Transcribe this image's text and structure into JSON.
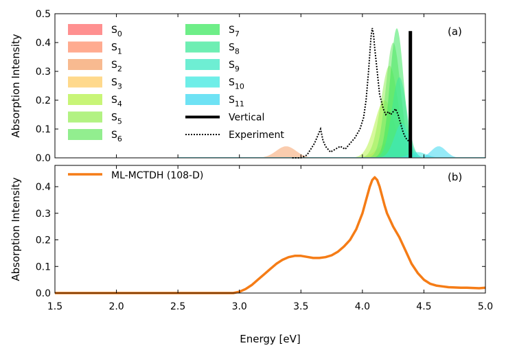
{
  "chart_data": [
    {
      "panel": "(a)",
      "type": "area",
      "ylabel": "Absorption Intensity",
      "xlim": [
        1.5,
        5.0
      ],
      "ylim": [
        0.0,
        0.5
      ],
      "yticks": [
        "0.0",
        "0.1",
        "0.2",
        "0.3",
        "0.4",
        "0.5"
      ],
      "legend_position": "top",
      "series": [
        {
          "name": "S",
          "sub": "0",
          "color": "#ff6b6b",
          "center": 4.3,
          "sigma": 0.07,
          "amp": 0.0
        },
        {
          "name": "S",
          "sub": "1",
          "color": "#ff8f6b",
          "center": 3.38,
          "sigma": 0.08,
          "amp": 0.0
        },
        {
          "name": "S",
          "sub": "2",
          "color": "#f5a36b",
          "center": 3.38,
          "sigma": 0.08,
          "amp": 0.04
        },
        {
          "name": "S",
          "sub": "3",
          "color": "#ffcc66",
          "center": 4.2,
          "sigma": 0.08,
          "amp": 0.05
        },
        {
          "name": "S",
          "sub": "4",
          "color": "#b6f24a",
          "center": 4.18,
          "sigma": 0.08,
          "amp": 0.2
        },
        {
          "name": "S",
          "sub": "5",
          "color": "#98ee5a",
          "center": 4.22,
          "sigma": 0.07,
          "amp": 0.32
        },
        {
          "name": "S",
          "sub": "6",
          "color": "#6ee86a",
          "center": 4.25,
          "sigma": 0.06,
          "amp": 0.4
        },
        {
          "name": "S",
          "sub": "7",
          "color": "#3ee860",
          "center": 4.28,
          "sigma": 0.055,
          "amp": 0.45
        },
        {
          "name": "S",
          "sub": "8",
          "color": "#3ee89a",
          "center": 4.3,
          "sigma": 0.06,
          "amp": 0.28
        },
        {
          "name": "S",
          "sub": "9",
          "color": "#3ee8c4",
          "center": 4.32,
          "sigma": 0.06,
          "amp": 0.12
        },
        {
          "name": "S",
          "sub": "10",
          "color": "#3ee8e0",
          "center": 4.45,
          "sigma": 0.07,
          "amp": 0.02
        },
        {
          "name": "S",
          "sub": "11",
          "color": "#3ed8f0",
          "center": 4.62,
          "sigma": 0.06,
          "amp": 0.04
        }
      ],
      "vertical": {
        "name": "Vertical",
        "x": 4.39,
        "y": 0.44
      },
      "experiment": {
        "name": "Experiment",
        "x": [
          3.43,
          3.5,
          3.55,
          3.58,
          3.61,
          3.64,
          3.66,
          3.68,
          3.7,
          3.74,
          3.78,
          3.82,
          3.86,
          3.9,
          3.94,
          3.98,
          4.01,
          4.03,
          4.05,
          4.07,
          4.08,
          4.09,
          4.1,
          4.12,
          4.14,
          4.17,
          4.19,
          4.21,
          4.23,
          4.25,
          4.27,
          4.29,
          4.31,
          4.33,
          4.35,
          4.37,
          4.39
        ],
        "y": [
          0.0,
          0.0,
          0.01,
          0.03,
          0.05,
          0.08,
          0.1,
          0.06,
          0.04,
          0.02,
          0.03,
          0.04,
          0.03,
          0.05,
          0.07,
          0.1,
          0.14,
          0.2,
          0.3,
          0.42,
          0.45,
          0.43,
          0.38,
          0.3,
          0.22,
          0.17,
          0.15,
          0.16,
          0.15,
          0.16,
          0.17,
          0.15,
          0.12,
          0.09,
          0.07,
          0.06,
          0.06
        ]
      }
    },
    {
      "panel": "(b)",
      "type": "line",
      "title": "",
      "xlabel": "Energy [eV]",
      "ylabel": "Absorption Intensity",
      "xlim": [
        1.5,
        5.0
      ],
      "ylim": [
        0.0,
        0.48
      ],
      "xticks": [
        "1.5",
        "2.0",
        "2.5",
        "3.0",
        "3.5",
        "4.0",
        "4.5",
        "5.0"
      ],
      "yticks": [
        "0.0",
        "0.1",
        "0.2",
        "0.3",
        "0.4"
      ],
      "legend_position": "top-left",
      "series": [
        {
          "name": "ML-MCTDH (108-D)",
          "color": "#f57c16",
          "x": [
            1.5,
            2.0,
            2.5,
            2.8,
            2.95,
            3.0,
            3.05,
            3.1,
            3.15,
            3.2,
            3.25,
            3.3,
            3.35,
            3.4,
            3.45,
            3.5,
            3.55,
            3.6,
            3.65,
            3.7,
            3.75,
            3.8,
            3.85,
            3.9,
            3.95,
            4.0,
            4.03,
            4.06,
            4.08,
            4.1,
            4.12,
            4.14,
            4.16,
            4.18,
            4.2,
            4.25,
            4.3,
            4.35,
            4.4,
            4.45,
            4.5,
            4.55,
            4.6,
            4.65,
            4.7,
            4.75,
            4.8,
            4.85,
            4.9,
            4.95,
            5.0
          ],
          "y": [
            0.0,
            0.0,
            0.0,
            0.0,
            0.0,
            0.005,
            0.015,
            0.03,
            0.05,
            0.07,
            0.09,
            0.11,
            0.125,
            0.135,
            0.14,
            0.14,
            0.136,
            0.132,
            0.132,
            0.135,
            0.142,
            0.155,
            0.175,
            0.2,
            0.24,
            0.3,
            0.35,
            0.4,
            0.425,
            0.435,
            0.425,
            0.4,
            0.365,
            0.33,
            0.3,
            0.25,
            0.21,
            0.16,
            0.11,
            0.075,
            0.05,
            0.035,
            0.028,
            0.025,
            0.022,
            0.021,
            0.02,
            0.02,
            0.019,
            0.018,
            0.02
          ]
        }
      ]
    }
  ]
}
